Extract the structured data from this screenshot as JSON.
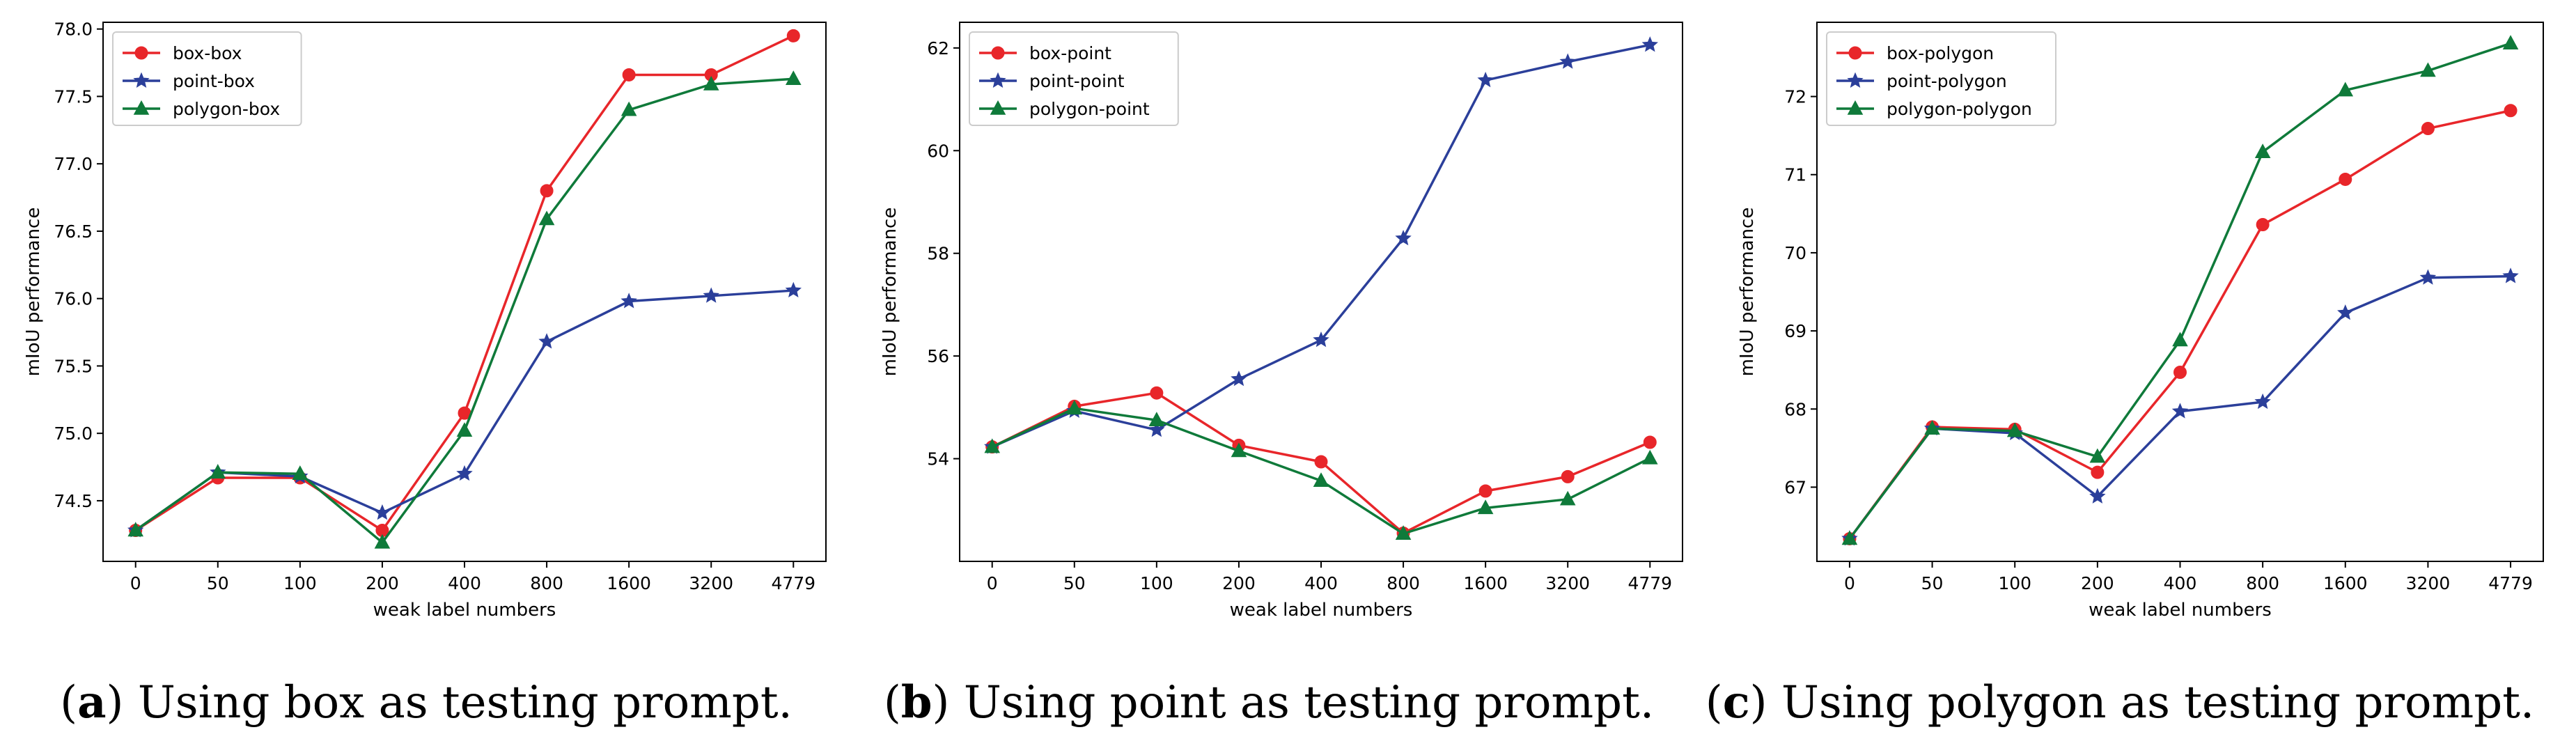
{
  "colors": {
    "red": "#e8262a",
    "blue": "#2b3f9a",
    "green": "#0f7a3a"
  },
  "chart_data": [
    {
      "type": "line",
      "caption_letter": "a",
      "caption_text": " Using box as testing prompt.",
      "categories": [
        "0",
        "50",
        "100",
        "200",
        "400",
        "800",
        "1600",
        "3200",
        "4779"
      ],
      "xlabel": "weak label numbers",
      "ylabel": "mIoU performance",
      "ylim": [
        74.05,
        78.05
      ],
      "yticks": [
        "74.5",
        "75.0",
        "75.5",
        "76.0",
        "76.5",
        "77.0",
        "77.5",
        "78.0"
      ],
      "legend_position": "top-left",
      "grid": false,
      "series": [
        {
          "name": "box-box",
          "marker": "circle",
          "color": "#e8262a",
          "values": [
            74.28,
            74.67,
            74.67,
            74.28,
            75.15,
            76.8,
            77.66,
            77.66,
            77.95
          ]
        },
        {
          "name": "point-box",
          "marker": "star",
          "color": "#2b3f9a",
          "values": [
            74.28,
            74.71,
            74.68,
            74.41,
            74.7,
            75.68,
            75.98,
            76.02,
            76.06
          ]
        },
        {
          "name": "polygon-box",
          "marker": "triangle",
          "color": "#0f7a3a",
          "values": [
            74.28,
            74.71,
            74.7,
            74.19,
            75.02,
            76.59,
            77.4,
            77.59,
            77.63
          ]
        }
      ]
    },
    {
      "type": "line",
      "caption_letter": "b",
      "caption_text": " Using point as testing prompt.",
      "categories": [
        "0",
        "50",
        "100",
        "200",
        "400",
        "800",
        "1600",
        "3200",
        "4779"
      ],
      "xlabel": "weak label numbers",
      "ylabel": "mIoU performance",
      "ylim": [
        52.0,
        62.5
      ],
      "yticks": [
        "54",
        "56",
        "58",
        "60",
        "62"
      ],
      "legend_position": "top-left",
      "grid": false,
      "series": [
        {
          "name": "box-point",
          "marker": "circle",
          "color": "#e8262a",
          "values": [
            54.23,
            55.02,
            55.28,
            54.26,
            53.94,
            52.55,
            53.37,
            53.65,
            54.32
          ]
        },
        {
          "name": "point-point",
          "marker": "star",
          "color": "#2b3f9a",
          "values": [
            54.23,
            54.93,
            54.56,
            55.55,
            56.31,
            58.29,
            61.37,
            61.73,
            62.06
          ]
        },
        {
          "name": "polygon-point",
          "marker": "triangle",
          "color": "#0f7a3a",
          "values": [
            54.23,
            54.98,
            54.75,
            54.15,
            53.57,
            52.54,
            53.04,
            53.21,
            54.01
          ]
        }
      ]
    },
    {
      "type": "line",
      "caption_letter": "c",
      "caption_text": " Using polygon as testing prompt.",
      "categories": [
        "0",
        "50",
        "100",
        "200",
        "400",
        "800",
        "1600",
        "3200",
        "4779"
      ],
      "xlabel": "weak label numbers",
      "ylabel": "mIoU performance",
      "ylim": [
        66.05,
        72.95
      ],
      "yticks": [
        "67",
        "68",
        "69",
        "70",
        "71",
        "72"
      ],
      "legend_position": "top-left",
      "grid": false,
      "series": [
        {
          "name": "box-polygon",
          "marker": "circle",
          "color": "#e8262a",
          "values": [
            66.34,
            67.77,
            67.74,
            67.19,
            68.47,
            70.36,
            70.94,
            71.59,
            71.82
          ]
        },
        {
          "name": "point-polygon",
          "marker": "star",
          "color": "#2b3f9a",
          "values": [
            66.34,
            67.75,
            67.69,
            66.88,
            67.97,
            68.09,
            69.23,
            69.68,
            69.7
          ]
        },
        {
          "name": "polygon-polygon",
          "marker": "triangle",
          "color": "#0f7a3a",
          "values": [
            66.34,
            67.75,
            67.72,
            67.39,
            68.88,
            71.29,
            72.08,
            72.33,
            72.68
          ]
        }
      ]
    }
  ]
}
